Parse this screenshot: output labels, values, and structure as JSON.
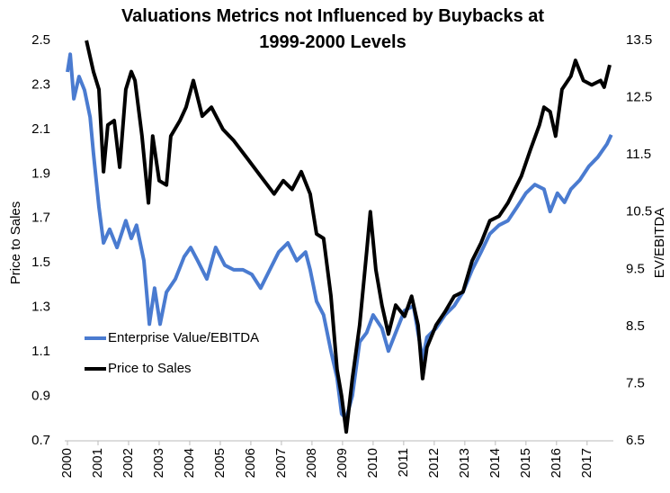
{
  "chart_data": {
    "type": "line",
    "title": "Valuations Metrics not Influenced by Buybacks at 1999-2000 Levels",
    "ylabel": "Price to Sales",
    "y2label": "EV/EBITDA",
    "xlim": [
      2000,
      2017.8
    ],
    "xticks": [
      2000,
      2001,
      2002,
      2003,
      2004,
      2005,
      2006,
      2007,
      2008,
      2009,
      2010,
      2011,
      2012,
      2013,
      2014,
      2015,
      2016,
      2017
    ],
    "ylim": [
      0.7,
      2.5
    ],
    "yticks": [
      0.7,
      0.9,
      1.1,
      1.3,
      1.5,
      1.7,
      1.9,
      2.1,
      2.3,
      2.5
    ],
    "y2lim": [
      6.5,
      13.5
    ],
    "y2ticks": [
      6.5,
      7.5,
      8.5,
      9.5,
      10.5,
      11.5,
      12.5,
      13.5
    ],
    "legend": "lower left",
    "series": [
      {
        "name": "Enterprise Value/EBITDA",
        "color": "#4a7bd0",
        "axis": "y2",
        "x": [
          2000.0,
          2000.09,
          2000.21,
          2000.38,
          2000.56,
          2000.74,
          2000.85,
          2001.03,
          2001.18,
          2001.38,
          2001.62,
          2001.91,
          2002.09,
          2002.26,
          2002.5,
          2002.68,
          2002.85,
          2003.03,
          2003.24,
          2003.53,
          2003.82,
          2004.03,
          2004.26,
          2004.56,
          2004.85,
          2005.15,
          2005.44,
          2005.74,
          2006.03,
          2006.32,
          2006.62,
          2006.91,
          2007.21,
          2007.5,
          2007.79,
          2007.94,
          2008.15,
          2008.38,
          2008.62,
          2008.82,
          2008.97,
          2009.12,
          2009.32,
          2009.56,
          2009.79,
          2010.0,
          2010.29,
          2010.5,
          2010.74,
          2011.03,
          2011.32,
          2011.62,
          2011.76,
          2012.06,
          2012.35,
          2012.65,
          2012.94,
          2013.24,
          2013.53,
          2013.82,
          2014.12,
          2014.41,
          2014.71,
          2015.0,
          2015.29,
          2015.59,
          2015.79,
          2016.03,
          2016.26,
          2016.47,
          2016.76,
          2017.06,
          2017.35,
          2017.65,
          2017.79
        ],
        "values": [
          12.95,
          13.26,
          12.48,
          12.87,
          12.63,
          12.16,
          11.53,
          10.59,
          9.96,
          10.2,
          9.88,
          10.35,
          10.04,
          10.27,
          9.65,
          8.54,
          9.17,
          8.54,
          9.1,
          9.33,
          9.72,
          9.88,
          9.65,
          9.33,
          9.88,
          9.57,
          9.49,
          9.49,
          9.41,
          9.17,
          9.49,
          9.8,
          9.96,
          9.65,
          9.8,
          9.49,
          8.94,
          8.7,
          8.07,
          7.6,
          6.97,
          6.89,
          7.29,
          8.23,
          8.39,
          8.7,
          8.47,
          8.07,
          8.39,
          8.78,
          8.86,
          7.92,
          8.31,
          8.47,
          8.7,
          8.86,
          9.1,
          9.49,
          9.8,
          10.12,
          10.27,
          10.35,
          10.59,
          10.83,
          10.98,
          10.9,
          10.51,
          10.83,
          10.67,
          10.9,
          11.06,
          11.3,
          11.46,
          11.69,
          11.85
        ]
      },
      {
        "name": "Price to Sales",
        "color": "#000000",
        "x": [
          2000.62,
          2000.85,
          2001.03,
          2001.18,
          2001.32,
          2001.53,
          2001.71,
          2001.91,
          2002.09,
          2002.21,
          2002.44,
          2002.65,
          2002.79,
          2003.0,
          2003.24,
          2003.38,
          2003.68,
          2003.88,
          2004.12,
          2004.41,
          2004.71,
          2005.09,
          2005.44,
          2005.88,
          2006.32,
          2006.76,
          2007.06,
          2007.35,
          2007.65,
          2007.94,
          2008.15,
          2008.38,
          2008.62,
          2008.82,
          2008.97,
          2009.12,
          2009.32,
          2009.56,
          2009.79,
          2009.91,
          2010.09,
          2010.29,
          2010.5,
          2010.74,
          2011.03,
          2011.26,
          2011.47,
          2011.62,
          2011.76,
          2012.06,
          2012.35,
          2012.65,
          2012.94,
          2013.24,
          2013.53,
          2013.82,
          2014.12,
          2014.41,
          2014.85,
          2015.15,
          2015.44,
          2015.59,
          2015.79,
          2015.97,
          2016.18,
          2016.47,
          2016.62,
          2016.88,
          2017.15,
          2017.44,
          2017.56,
          2017.74
        ],
        "values": [
          2.5,
          2.36,
          2.28,
          1.91,
          2.12,
          2.14,
          1.93,
          2.28,
          2.36,
          2.32,
          2.07,
          1.77,
          2.07,
          1.87,
          1.85,
          2.07,
          2.14,
          2.2,
          2.32,
          2.16,
          2.2,
          2.1,
          2.05,
          1.97,
          1.89,
          1.81,
          1.87,
          1.83,
          1.91,
          1.81,
          1.63,
          1.61,
          1.35,
          1.02,
          0.9,
          0.74,
          0.98,
          1.22,
          1.55,
          1.73,
          1.47,
          1.31,
          1.18,
          1.31,
          1.26,
          1.35,
          1.22,
          0.98,
          1.12,
          1.22,
          1.28,
          1.35,
          1.37,
          1.51,
          1.59,
          1.69,
          1.71,
          1.77,
          1.89,
          2.01,
          2.12,
          2.2,
          2.18,
          2.07,
          2.28,
          2.34,
          2.41,
          2.32,
          2.3,
          2.32,
          2.29,
          2.39
        ]
      }
    ]
  }
}
